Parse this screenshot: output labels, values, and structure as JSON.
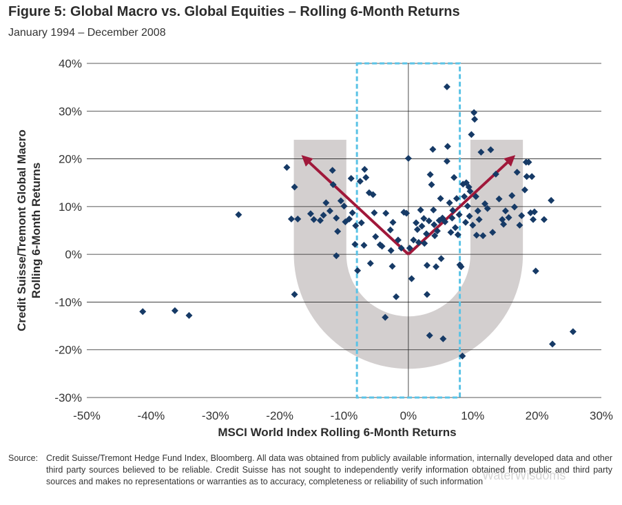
{
  "title": "Figure 5: Global Macro vs. Global Equities – Rolling 6-Month Returns",
  "subtitle": "January 1994 – December 2008",
  "source_label": "Source:",
  "source_text": "Credit Suisse/Tremont Hedge Fund Index, Bloomberg. All data was obtained from publicly available information, internally developed data and other third party sources believed to be reliable. Credit Suisse has not sought to independently verify information obtained from public and third party sources and makes no representations or warranties as to accuracy, completeness or reliability of such information",
  "watermark": "WaterWisdoms",
  "colors": {
    "points": "#163a66",
    "arrows": "#a0183a",
    "band": "#d3cfcf",
    "dashed_box": "#5bc3e6",
    "grid": "#222222"
  },
  "chart_data": {
    "type": "scatter",
    "xlabel": "MSCI World Index Rolling 6-Month Returns",
    "ylabel_line1": "Credit Suisse/Tremont Global Macro",
    "ylabel_line2": "Rolling 6-Month Returns",
    "xlim": [
      -50,
      30
    ],
    "ylim": [
      -30,
      40
    ],
    "x_ticks": [
      -50,
      -40,
      -30,
      -20,
      -10,
      0,
      10,
      20,
      30
    ],
    "y_ticks": [
      -30,
      -20,
      -10,
      0,
      10,
      20,
      30,
      40
    ],
    "x_tick_labels": [
      "-50%",
      "-40%",
      "-30%",
      "-20%",
      "-10%",
      "0%",
      "10%",
      "20%",
      "30%"
    ],
    "y_tick_labels": [
      "-30%",
      "-20%",
      "-10%",
      "0%",
      "10%",
      "20%",
      "30%",
      "40%"
    ],
    "grid": "horizontal",
    "annotations": {
      "band": {
        "center": [
          0,
          0
        ],
        "inner_radius_y": 13,
        "outer_radius_y": 24,
        "shape": "half-ring opening upward"
      },
      "dashed_box": {
        "x": [
          -8,
          8
        ],
        "y": [
          -30,
          40
        ]
      },
      "arrows": [
        {
          "from": [
            0,
            0
          ],
          "to": [
            -16,
            20
          ]
        },
        {
          "from": [
            0,
            0
          ],
          "to": [
            16,
            20
          ]
        }
      ]
    },
    "points": [
      [
        -41.3,
        -12
      ],
      [
        -36.3,
        -11.8
      ],
      [
        -34.1,
        -12.8
      ],
      [
        -26.4,
        8.3
      ],
      [
        -18.9,
        18.2
      ],
      [
        -17.7,
        14.1
      ],
      [
        -18.2,
        7.4
      ],
      [
        -17.2,
        7.4
      ],
      [
        -17.7,
        -8.4
      ],
      [
        -15.2,
        8.5
      ],
      [
        -14.7,
        7.3
      ],
      [
        -13.7,
        7.1
      ],
      [
        -13.2,
        8.2
      ],
      [
        -12.8,
        10.8
      ],
      [
        -12.2,
        9.1
      ],
      [
        -11.8,
        17.6
      ],
      [
        -11.7,
        14.6
      ],
      [
        -11.2,
        7.6
      ],
      [
        -11.0,
        4.8
      ],
      [
        -11.2,
        -0.3
      ],
      [
        -10.5,
        11.2
      ],
      [
        -10.0,
        10.1
      ],
      [
        -9.8,
        6.8
      ],
      [
        -9.2,
        7.4
      ],
      [
        -8.9,
        15.9
      ],
      [
        -8.7,
        8.7
      ],
      [
        -8.2,
        6.0
      ],
      [
        -8.3,
        2.1
      ],
      [
        -7.5,
        15.3
      ],
      [
        -7.3,
        6.6
      ],
      [
        -7.9,
        -3.4
      ],
      [
        -6.8,
        17.8
      ],
      [
        -6.6,
        16.1
      ],
      [
        -6.9,
        1.9
      ],
      [
        -6.1,
        12.9
      ],
      [
        -5.5,
        12.5
      ],
      [
        -5.3,
        8.7
      ],
      [
        -5.1,
        3.7
      ],
      [
        -5.9,
        -1.9
      ],
      [
        -4.4,
        2.0
      ],
      [
        -4.1,
        1.7
      ],
      [
        -3.5,
        8.6
      ],
      [
        -3.6,
        -13.2
      ],
      [
        -2.8,
        5.1
      ],
      [
        -2.7,
        0.8
      ],
      [
        -2.4,
        6.7
      ],
      [
        -2.5,
        -2.5
      ],
      [
        -1.9,
        -8.9
      ],
      [
        -1.6,
        3.0
      ],
      [
        -1.1,
        1.3
      ],
      [
        -0.7,
        8.8
      ],
      [
        -0.3,
        8.6
      ],
      [
        0.0,
        20.1
      ],
      [
        0.2,
        1.3
      ],
      [
        0.8,
        3.0
      ],
      [
        0.5,
        -5.1
      ],
      [
        1.2,
        6.6
      ],
      [
        1.4,
        5.2
      ],
      [
        1.6,
        2.5
      ],
      [
        1.9,
        9.3
      ],
      [
        2.1,
        5.9
      ],
      [
        2.4,
        7.5
      ],
      [
        2.5,
        2.3
      ],
      [
        2.8,
        4.3
      ],
      [
        2.9,
        -2.3
      ],
      [
        2.9,
        -8.4
      ],
      [
        3.2,
        7.0
      ],
      [
        3.4,
        16.7
      ],
      [
        3.6,
        14.6
      ],
      [
        3.3,
        -17
      ],
      [
        3.8,
        22
      ],
      [
        3.9,
        9.3
      ],
      [
        4.0,
        6.2
      ],
      [
        4.1,
        3.9
      ],
      [
        4.3,
        -2.6
      ],
      [
        4.5,
        4.9
      ],
      [
        4.8,
        7.1
      ],
      [
        5.0,
        11.7
      ],
      [
        5.3,
        7.6
      ],
      [
        5.1,
        -0.9
      ],
      [
        5.7,
        6.8
      ],
      [
        6.0,
        35.1
      ],
      [
        6.1,
        22.6
      ],
      [
        6.0,
        19.5
      ],
      [
        6.4,
        10.8
      ],
      [
        6.6,
        4.6
      ],
      [
        6.8,
        7.6
      ],
      [
        6.9,
        9.2
      ],
      [
        5.4,
        -17.7
      ],
      [
        7.1,
        16.1
      ],
      [
        7.3,
        5.6
      ],
      [
        7.5,
        11.7
      ],
      [
        7.7,
        4.1
      ],
      [
        7.9,
        8.3
      ],
      [
        8.0,
        -2.2
      ],
      [
        8.2,
        -2.6
      ],
      [
        8.4,
        -21.3
      ],
      [
        8.5,
        14.7
      ],
      [
        8.7,
        12.1
      ],
      [
        8.9,
        6.7
      ],
      [
        9.0,
        15.0
      ],
      [
        9.2,
        10.1
      ],
      [
        9.4,
        14.1
      ],
      [
        9.5,
        8.0
      ],
      [
        9.6,
        13.2
      ],
      [
        9.8,
        25.1
      ],
      [
        10.0,
        6.1
      ],
      [
        10.2,
        29.7
      ],
      [
        10.3,
        28.3
      ],
      [
        10.5,
        12.1
      ],
      [
        10.6,
        4.0
      ],
      [
        10.8,
        9.1
      ],
      [
        11.0,
        7.3
      ],
      [
        11.3,
        21.4
      ],
      [
        11.6,
        3.9
      ],
      [
        11.9,
        10.6
      ],
      [
        12.3,
        9.6
      ],
      [
        12.8,
        21.9
      ],
      [
        13.1,
        4.6
      ],
      [
        13.6,
        16.8
      ],
      [
        14.1,
        11.6
      ],
      [
        14.6,
        7.3
      ],
      [
        14.8,
        6.3
      ],
      [
        15.1,
        9.1
      ],
      [
        15.6,
        7.7
      ],
      [
        16.1,
        12.3
      ],
      [
        16.5,
        9.9
      ],
      [
        16.9,
        17.2
      ],
      [
        17.3,
        6.1
      ],
      [
        17.6,
        8.1
      ],
      [
        18.1,
        13.5
      ],
      [
        18.3,
        19.3
      ],
      [
        18.4,
        16.3
      ],
      [
        18.7,
        19.3
      ],
      [
        19.0,
        8.7
      ],
      [
        19.2,
        16.3
      ],
      [
        19.4,
        7.3
      ],
      [
        19.6,
        8.9
      ],
      [
        19.8,
        -3.5
      ],
      [
        21.1,
        7.3
      ],
      [
        22.2,
        11.3
      ],
      [
        22.4,
        -18.8
      ],
      [
        25.6,
        -16.2
      ]
    ]
  }
}
